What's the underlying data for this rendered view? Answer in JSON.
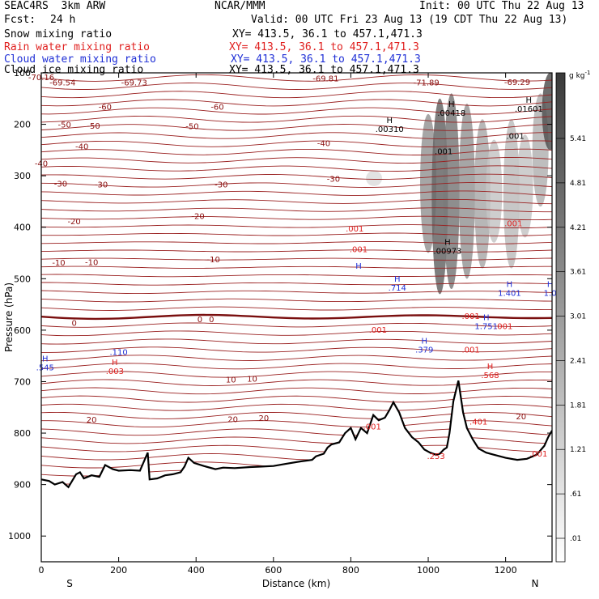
{
  "header": {
    "model_line": "SEAC4RS  3km ARW",
    "center": "NCAR/MMM",
    "init": "Init: 00 UTC Thu 22 Aug 13",
    "fcst_label": "Fcst:",
    "fcst_value": "24 h",
    "valid": "Valid: 00 UTC Fri 23 Aug 13 (19 CDT Thu 22 Aug 13)"
  },
  "fields": [
    {
      "name": "Snow mixing ratio",
      "xy": "XY= 413.5, 36.1 to 457.1,471.3",
      "color": "#000000"
    },
    {
      "name": "Rain water mixing ratio",
      "xy": "XY= 413.5, 36.1 to 457.1,471.3",
      "color": "#e0201f"
    },
    {
      "name": "Cloud water mixing ratio",
      "xy": "XY= 413.5, 36.1 to 457.1,471.3",
      "color": "#1f2fd6"
    },
    {
      "name": "Cloud ice mixing ratio",
      "xy": "XY= 413.5, 36.1 to 457.1,471.3",
      "color": "#000000"
    }
  ],
  "chart_data": {
    "type": "heatmap",
    "xlabel": "Distance (km)",
    "ylabel": "Pressure (hPa)",
    "xlim": [
      0,
      1320
    ],
    "ylim": [
      1050,
      100
    ],
    "xticks": [
      0,
      200,
      400,
      600,
      800,
      1000,
      1200
    ],
    "yticks": [
      100,
      200,
      300,
      400,
      500,
      600,
      700,
      800,
      900,
      1000
    ],
    "direction_left": "S",
    "direction_right": "N",
    "colorbar": {
      "unit": "g kg",
      "unit_sup": "-1",
      "labels": [
        "5.41",
        "4.81",
        "4.21",
        "3.61",
        "3.01",
        "2.41",
        "1.81",
        "1.21",
        ".61",
        ".01"
      ]
    },
    "temperature_labels": [
      {
        "x": 55,
        "p": 118,
        "text": "-69.54"
      },
      {
        "x": 240,
        "p": 118,
        "text": "-69.73"
      },
      {
        "x": 735,
        "p": 110,
        "text": "-69.81"
      },
      {
        "x": 995,
        "p": 118,
        "text": "-71.89"
      },
      {
        "x": 1230,
        "p": 117,
        "text": "-69.29"
      },
      {
        "x": 0,
        "p": 108,
        "text": "-70.16"
      },
      {
        "x": 165,
        "p": 165,
        "text": "-60"
      },
      {
        "x": 455,
        "p": 165,
        "text": "-60"
      },
      {
        "x": 60,
        "p": 200,
        "text": "-50"
      },
      {
        "x": 135,
        "p": 202,
        "text": "-50"
      },
      {
        "x": 390,
        "p": 203,
        "text": "-50"
      },
      {
        "x": 105,
        "p": 242,
        "text": "-40"
      },
      {
        "x": 730,
        "p": 236,
        "text": "-40"
      },
      {
        "x": 0,
        "p": 275,
        "text": "-40"
      },
      {
        "x": 50,
        "p": 315,
        "text": "-30"
      },
      {
        "x": 155,
        "p": 316,
        "text": "-30"
      },
      {
        "x": 465,
        "p": 316,
        "text": "-30"
      },
      {
        "x": 755,
        "p": 305,
        "text": "-30"
      },
      {
        "x": 85,
        "p": 388,
        "text": "-20"
      },
      {
        "x": 405,
        "p": 378,
        "text": "-20"
      },
      {
        "x": 45,
        "p": 468,
        "text": "-10"
      },
      {
        "x": 130,
        "p": 467,
        "text": "-10"
      },
      {
        "x": 445,
        "p": 462,
        "text": "-10"
      },
      {
        "x": 85,
        "p": 585,
        "text": "0"
      },
      {
        "x": 410,
        "p": 578,
        "text": "0"
      },
      {
        "x": 440,
        "p": 578,
        "text": "0"
      },
      {
        "x": 490,
        "p": 695,
        "text": "10"
      },
      {
        "x": 545,
        "p": 694,
        "text": "10"
      },
      {
        "x": 130,
        "p": 773,
        "text": "20"
      },
      {
        "x": 495,
        "p": 772,
        "text": "20"
      },
      {
        "x": 575,
        "p": 770,
        "text": "20"
      },
      {
        "x": 1240,
        "p": 767,
        "text": "20"
      }
    ],
    "max_labels": [
      {
        "x": 900,
        "p": 212,
        "letter": "H",
        "text": ".00310",
        "color": "#000000"
      },
      {
        "x": 1060,
        "p": 180,
        "letter": "H",
        "text": ".00418",
        "color": "#000000"
      },
      {
        "x": 1260,
        "p": 172,
        "letter": "H",
        "text": ".01601",
        "color": "#000000"
      },
      {
        "x": 1225,
        "p": 225,
        "letter": "",
        "text": ".001",
        "color": "#000000"
      },
      {
        "x": 1040,
        "p": 255,
        "letter": "",
        "text": ".001",
        "color": "#000000"
      },
      {
        "x": 1050,
        "p": 448,
        "letter": "H",
        "text": ".00973",
        "color": "#000000"
      },
      {
        "x": 810,
        "p": 405,
        "letter": "",
        "text": ".001",
        "color": "#e0201f"
      },
      {
        "x": 820,
        "p": 445,
        "letter": "",
        "text": ".001",
        "color": "#e0201f"
      },
      {
        "x": 1220,
        "p": 395,
        "letter": "",
        "text": ".001",
        "color": "#e0201f"
      },
      {
        "x": 820,
        "p": 495,
        "letter": "H",
        "text": "",
        "color": "#1f2fd6"
      },
      {
        "x": 920,
        "p": 520,
        "letter": "H",
        "text": ".714",
        "color": "#1f2fd6"
      },
      {
        "x": 1210,
        "p": 530,
        "letter": "H",
        "text": "1.401",
        "color": "#1f2fd6"
      },
      {
        "x": 1315,
        "p": 530,
        "letter": "H",
        "text": "1.0",
        "color": "#1f2fd6"
      },
      {
        "x": 1150,
        "p": 595,
        "letter": "H",
        "text": "1.751",
        "color": "#1f2fd6"
      },
      {
        "x": 990,
        "p": 640,
        "letter": "H",
        "text": ".379",
        "color": "#1f2fd6"
      },
      {
        "x": 10,
        "p": 675,
        "letter": "H",
        "text": ".545",
        "color": "#1f2fd6"
      },
      {
        "x": 200,
        "p": 645,
        "letter": "",
        "text": ".110",
        "color": "#1f2fd6"
      },
      {
        "x": 190,
        "p": 682,
        "letter": "H",
        "text": ".003",
        "color": "#e0201f"
      },
      {
        "x": 870,
        "p": 602,
        "letter": "",
        "text": ".001",
        "color": "#e0201f"
      },
      {
        "x": 1110,
        "p": 575,
        "letter": "",
        "text": ".001",
        "color": "#e0201f"
      },
      {
        "x": 1110,
        "p": 640,
        "letter": "",
        "text": ".001",
        "color": "#e0201f"
      },
      {
        "x": 1195,
        "p": 595,
        "letter": "",
        "text": ".001",
        "color": "#e0201f"
      },
      {
        "x": 1160,
        "p": 690,
        "letter": "H",
        "text": ".568",
        "color": "#e0201f"
      },
      {
        "x": 1130,
        "p": 780,
        "letter": "",
        "text": ".401",
        "color": "#e0201f"
      },
      {
        "x": 1285,
        "p": 842,
        "letter": "",
        "text": ".001",
        "color": "#e0201f"
      },
      {
        "x": 1020,
        "p": 847,
        "letter": "",
        "text": ".253",
        "color": "#e0201f"
      },
      {
        "x": 855,
        "p": 790,
        "letter": "",
        "text": ".001",
        "color": "#e0201f"
      }
    ],
    "terrain": [
      [
        0,
        890
      ],
      [
        20,
        893
      ],
      [
        35,
        900
      ],
      [
        55,
        895
      ],
      [
        70,
        905
      ],
      [
        90,
        880
      ],
      [
        100,
        876
      ],
      [
        110,
        888
      ],
      [
        130,
        882
      ],
      [
        150,
        885
      ],
      [
        165,
        862
      ],
      [
        185,
        870
      ],
      [
        200,
        873
      ],
      [
        230,
        872
      ],
      [
        255,
        873
      ],
      [
        275,
        838
      ],
      [
        280,
        890
      ],
      [
        300,
        888
      ],
      [
        320,
        882
      ],
      [
        340,
        880
      ],
      [
        360,
        876
      ],
      [
        370,
        865
      ],
      [
        380,
        848
      ],
      [
        395,
        858
      ],
      [
        420,
        864
      ],
      [
        450,
        870
      ],
      [
        470,
        867
      ],
      [
        500,
        868
      ],
      [
        540,
        866
      ],
      [
        570,
        865
      ],
      [
        600,
        864
      ],
      [
        630,
        860
      ],
      [
        670,
        855
      ],
      [
        700,
        852
      ],
      [
        710,
        845
      ],
      [
        730,
        840
      ],
      [
        740,
        828
      ],
      [
        750,
        822
      ],
      [
        770,
        818
      ],
      [
        785,
        800
      ],
      [
        800,
        790
      ],
      [
        812,
        812
      ],
      [
        826,
        790
      ],
      [
        842,
        800
      ],
      [
        858,
        765
      ],
      [
        872,
        775
      ],
      [
        888,
        770
      ],
      [
        900,
        755
      ],
      [
        910,
        740
      ],
      [
        925,
        760
      ],
      [
        940,
        790
      ],
      [
        958,
        808
      ],
      [
        975,
        818
      ],
      [
        990,
        832
      ],
      [
        1005,
        838
      ],
      [
        1020,
        842
      ],
      [
        1030,
        840
      ],
      [
        1040,
        832
      ],
      [
        1048,
        828
      ],
      [
        1055,
        800
      ],
      [
        1065,
        738
      ],
      [
        1078,
        698
      ],
      [
        1090,
        760
      ],
      [
        1100,
        790
      ],
      [
        1115,
        812
      ],
      [
        1130,
        830
      ],
      [
        1150,
        838
      ],
      [
        1170,
        842
      ],
      [
        1200,
        848
      ],
      [
        1230,
        852
      ],
      [
        1255,
        850
      ],
      [
        1280,
        842
      ],
      [
        1300,
        825
      ],
      [
        1310,
        808
      ],
      [
        1320,
        795
      ]
    ],
    "shading_columns": [
      {
        "x": 860,
        "p_top": 290,
        "p_bot": 320,
        "intensity": 0.18
      },
      {
        "x": 1000,
        "p_top": 180,
        "p_bot": 450,
        "intensity": 0.55
      },
      {
        "x": 1030,
        "p_top": 150,
        "p_bot": 530,
        "intensity": 0.8
      },
      {
        "x": 1060,
        "p_top": 140,
        "p_bot": 520,
        "intensity": 0.7
      },
      {
        "x": 1100,
        "p_top": 160,
        "p_bot": 500,
        "intensity": 0.55
      },
      {
        "x": 1140,
        "p_top": 190,
        "p_bot": 480,
        "intensity": 0.45
      },
      {
        "x": 1170,
        "p_top": 230,
        "p_bot": 430,
        "intensity": 0.3
      },
      {
        "x": 1215,
        "p_top": 190,
        "p_bot": 480,
        "intensity": 0.35
      },
      {
        "x": 1250,
        "p_top": 220,
        "p_bot": 420,
        "intensity": 0.3
      },
      {
        "x": 1290,
        "p_top": 140,
        "p_bot": 360,
        "intensity": 0.4
      },
      {
        "x": 1315,
        "p_top": 100,
        "p_bot": 250,
        "intensity": 0.9
      }
    ]
  }
}
